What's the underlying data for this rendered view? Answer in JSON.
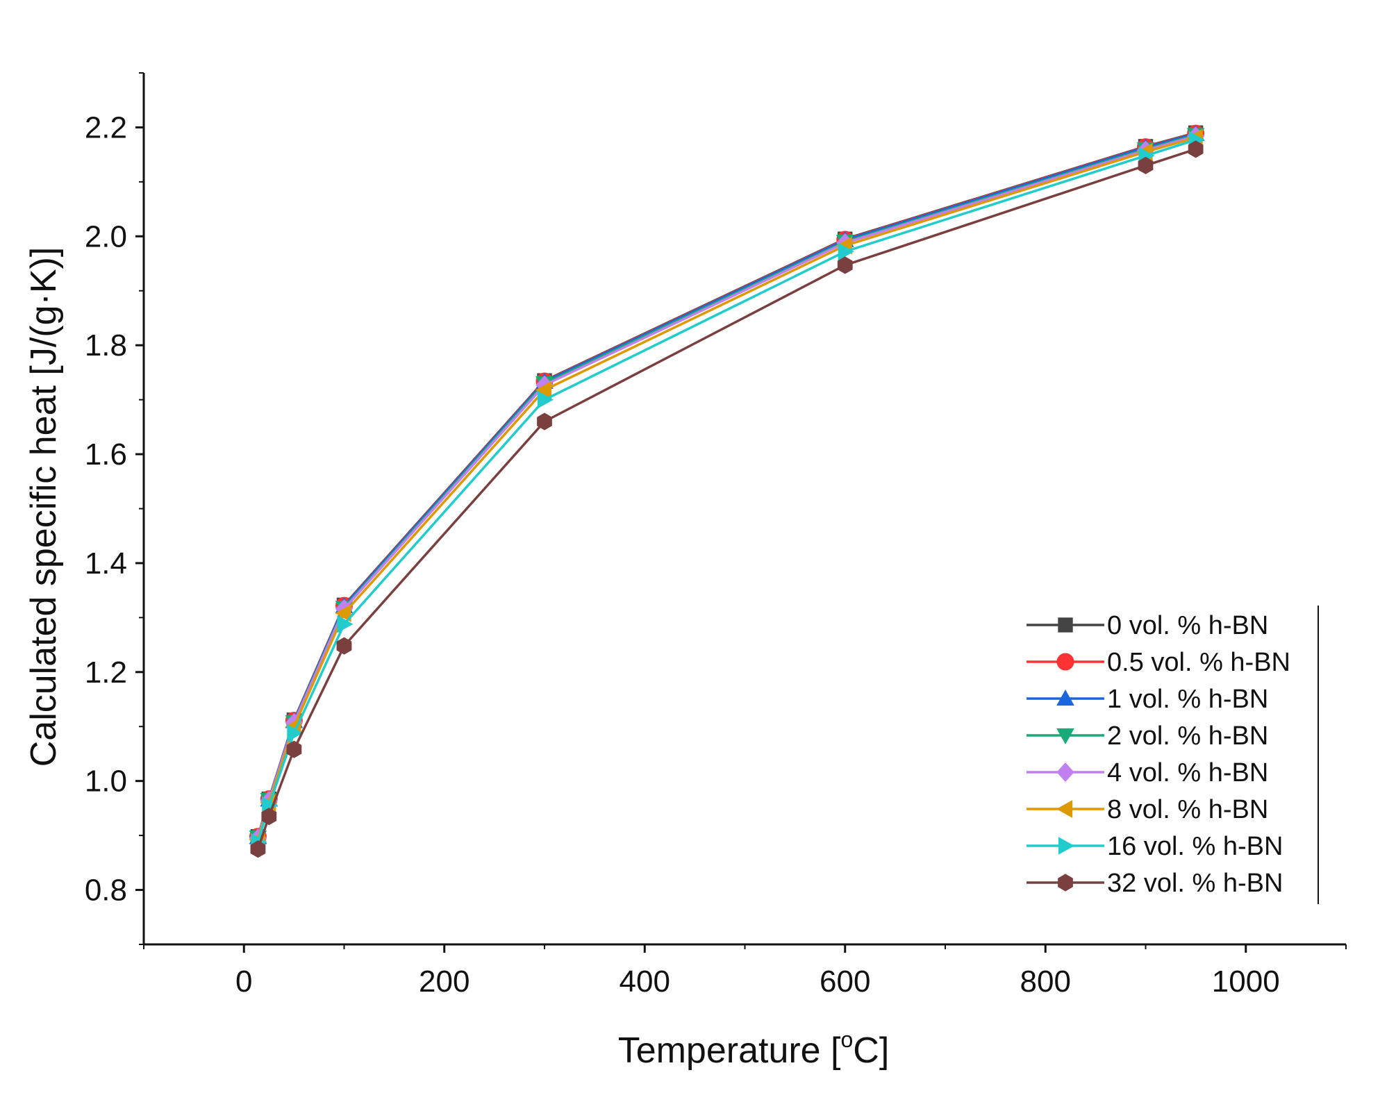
{
  "chart_data": {
    "type": "line",
    "title": "",
    "xlabel": "Temperature [",
    "xlabel_sup": "o",
    "xlabel_end": "C]",
    "ylabel": "Calculated specific heat [J/(g·K)]",
    "xlim": [
      -100,
      1100
    ],
    "ylim": [
      0.7,
      2.3
    ],
    "x_ticks": [
      0,
      200,
      400,
      600,
      800,
      1000
    ],
    "x_tick_labels": [
      "0",
      "200",
      "400",
      "600",
      "800",
      "1000"
    ],
    "y_ticks": [
      0.8,
      1.0,
      1.2,
      1.4,
      1.6,
      1.8,
      2.0,
      2.2
    ],
    "y_tick_labels": [
      "0.8",
      "1.0",
      "1.2",
      "1.4",
      "1.6",
      "1.8",
      "2.0",
      "2.2"
    ],
    "grid": false,
    "legend_position": "bottom-right",
    "series": [
      {
        "name": "0 vol. % h-BN",
        "color": "#444444",
        "marker": "square",
        "x": [
          14,
          25,
          50,
          100,
          300,
          600,
          900,
          950
        ],
        "y": [
          0.898,
          0.967,
          1.112,
          1.323,
          1.735,
          1.995,
          2.165,
          2.19
        ]
      },
      {
        "name": "0.5 vol. % h-BN",
        "color": "#ff3333",
        "marker": "circle",
        "x": [
          14,
          25,
          50,
          100,
          300,
          600,
          900,
          950
        ],
        "y": [
          0.898,
          0.967,
          1.111,
          1.322,
          1.734,
          1.994,
          2.164,
          2.189
        ]
      },
      {
        "name": "1 vol. % h-BN",
        "color": "#1a66dd",
        "marker": "triangle-up",
        "x": [
          14,
          25,
          50,
          100,
          300,
          600,
          900,
          950
        ],
        "y": [
          0.897,
          0.966,
          1.11,
          1.321,
          1.733,
          1.993,
          2.163,
          2.188
        ]
      },
      {
        "name": "2 vol. % h-BN",
        "color": "#1aaa77",
        "marker": "triangle-down",
        "x": [
          14,
          25,
          50,
          100,
          300,
          600,
          900,
          950
        ],
        "y": [
          0.896,
          0.965,
          1.108,
          1.318,
          1.73,
          1.99,
          2.16,
          2.186
        ]
      },
      {
        "name": "4 vol. % h-BN",
        "color": "#c080f0",
        "marker": "diamond",
        "x": [
          14,
          25,
          50,
          100,
          300,
          600,
          900,
          950
        ],
        "y": [
          0.895,
          0.964,
          1.107,
          1.316,
          1.727,
          1.988,
          2.158,
          2.184
        ]
      },
      {
        "name": "8 vol. % h-BN",
        "color": "#dd9900",
        "marker": "triangle-left",
        "x": [
          14,
          25,
          50,
          100,
          300,
          600,
          900,
          950
        ],
        "y": [
          0.892,
          0.96,
          1.1,
          1.308,
          1.718,
          1.983,
          2.155,
          2.181
        ]
      },
      {
        "name": "16 vol. % h-BN",
        "color": "#22cccc",
        "marker": "triangle-right",
        "x": [
          14,
          25,
          50,
          100,
          300,
          600,
          900,
          950
        ],
        "y": [
          0.888,
          0.955,
          1.088,
          1.288,
          1.7,
          1.972,
          2.148,
          2.177
        ]
      },
      {
        "name": "32 vol. % h-BN",
        "color": "#7a4040",
        "marker": "hexagon",
        "x": [
          14,
          25,
          50,
          100,
          300,
          600,
          900,
          950
        ],
        "y": [
          0.875,
          0.935,
          1.058,
          1.248,
          1.66,
          1.947,
          2.13,
          2.16
        ]
      }
    ]
  }
}
